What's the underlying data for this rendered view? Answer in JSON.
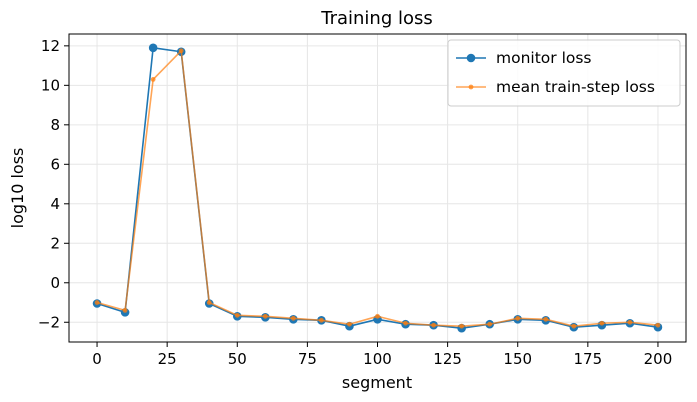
{
  "chart_data": {
    "type": "line",
    "title": "Training loss",
    "xlabel": "segment",
    "ylabel": "log10 loss",
    "xlim": [
      -10,
      210
    ],
    "ylim": [
      -3.0,
      12.6
    ],
    "xticks": [
      0,
      25,
      50,
      75,
      100,
      125,
      150,
      175,
      200
    ],
    "yticks": [
      -2,
      0,
      2,
      4,
      6,
      8,
      10,
      12
    ],
    "grid": true,
    "legend_position": "top-right",
    "x": [
      0,
      10,
      20,
      30,
      40,
      50,
      60,
      70,
      80,
      90,
      100,
      110,
      120,
      130,
      140,
      150,
      160,
      170,
      180,
      190,
      200
    ],
    "series": [
      {
        "name": "monitor loss",
        "color": "#1f77b4",
        "marker": "circle-large",
        "values": [
          -1.05,
          -1.5,
          11.9,
          11.7,
          -1.05,
          -1.7,
          -1.75,
          -1.85,
          -1.9,
          -2.2,
          -1.85,
          -2.1,
          -2.15,
          -2.3,
          -2.1,
          -1.85,
          -1.9,
          -2.25,
          -2.15,
          -2.05,
          -2.25
        ]
      },
      {
        "name": "mean train-step loss",
        "color": "#ff7f0e",
        "marker": "circle-small",
        "values": [
          -1.0,
          -1.4,
          10.3,
          11.75,
          -1.0,
          -1.65,
          -1.7,
          -1.8,
          -1.9,
          -2.1,
          -1.7,
          -2.05,
          -2.15,
          -2.2,
          -2.1,
          -1.8,
          -1.85,
          -2.2,
          -2.05,
          -2.0,
          -2.15
        ]
      }
    ]
  }
}
